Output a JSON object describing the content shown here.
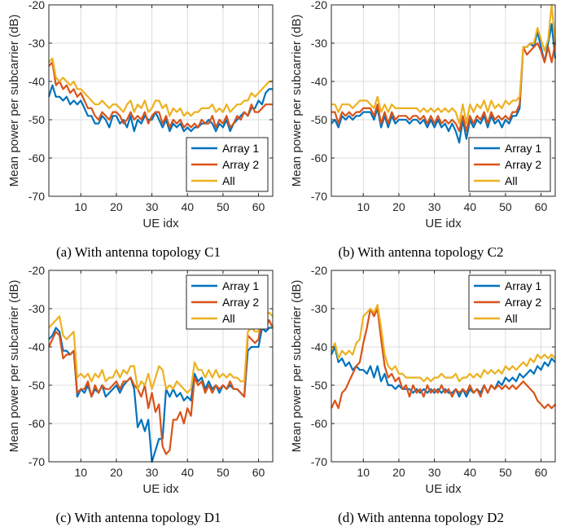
{
  "chart_data": [
    {
      "type": "line",
      "caption": "(a) With antenna topology C1",
      "xlabel": "UE idx",
      "ylabel": "Mean power per subcarrier (dB)",
      "xlim": [
        1,
        64
      ],
      "ylim": [
        -70,
        -20
      ],
      "xticks": [
        10,
        20,
        30,
        40,
        50,
        60
      ],
      "yticks": [
        -70,
        -60,
        -50,
        -40,
        -30,
        -20
      ],
      "legend_position": "bottom-right",
      "x": [
        1,
        2,
        3,
        4,
        5,
        6,
        7,
        8,
        9,
        10,
        11,
        12,
        13,
        14,
        15,
        16,
        17,
        18,
        19,
        20,
        21,
        22,
        23,
        24,
        25,
        26,
        27,
        28,
        29,
        30,
        31,
        32,
        33,
        34,
        35,
        36,
        37,
        38,
        39,
        40,
        41,
        42,
        43,
        44,
        45,
        46,
        47,
        48,
        49,
        50,
        51,
        52,
        53,
        54,
        55,
        56,
        57,
        58,
        59,
        60,
        61,
        62,
        63,
        64
      ],
      "series": [
        {
          "name": "Array 1",
          "color": "#0072BD",
          "values": [
            -44,
            -41,
            -44,
            -44,
            -45,
            -44,
            -46,
            -45,
            -46,
            -45,
            -47,
            -49,
            -49,
            -51,
            -51,
            -49,
            -50,
            -52,
            -49,
            -49,
            -51,
            -50,
            -52,
            -49,
            -53,
            -50,
            -51,
            -49,
            -50,
            -50,
            -48,
            -50,
            -52,
            -50,
            -53,
            -51,
            -52,
            -51,
            -53,
            -52,
            -53,
            -52,
            -52,
            -51,
            -51,
            -50,
            -51,
            -53,
            -51,
            -52,
            -50,
            -53,
            -51,
            -50,
            -49,
            -48,
            -49,
            -47,
            -47,
            -45,
            -46,
            -43,
            -42,
            -42
          ]
        },
        {
          "name": "Array 2",
          "color": "#D95319",
          "values": [
            -36,
            -35,
            -41,
            -40,
            -42,
            -41,
            -43,
            -42,
            -44,
            -43,
            -45,
            -47,
            -47,
            -49,
            -50,
            -48,
            -49,
            -50,
            -48,
            -48,
            -49,
            -51,
            -50,
            -48,
            -50,
            -49,
            -50,
            -48,
            -51,
            -49,
            -48,
            -48,
            -51,
            -49,
            -52,
            -50,
            -51,
            -50,
            -52,
            -51,
            -52,
            -51,
            -52,
            -50,
            -51,
            -51,
            -49,
            -52,
            -50,
            -51,
            -49,
            -52,
            -51,
            -49,
            -50,
            -48,
            -49,
            -46,
            -48,
            -48,
            -47,
            -46,
            -46,
            -46
          ]
        },
        {
          "name": "All",
          "color": "#EDB120",
          "values": [
            -35,
            -34,
            -39,
            -40,
            -39,
            -40,
            -41,
            -40,
            -42,
            -42,
            -43,
            -44,
            -45,
            -46,
            -46,
            -45,
            -46,
            -47,
            -46,
            -46,
            -47,
            -48,
            -46,
            -45,
            -48,
            -46,
            -47,
            -45,
            -48,
            -47,
            -45,
            -45,
            -47,
            -46,
            -49,
            -47,
            -48,
            -47,
            -49,
            -48,
            -49,
            -48,
            -48,
            -47,
            -47,
            -47,
            -46,
            -48,
            -47,
            -48,
            -46,
            -48,
            -47,
            -46,
            -46,
            -45,
            -45,
            -43,
            -44,
            -43,
            -42,
            -41,
            -40,
            -40
          ]
        }
      ]
    },
    {
      "type": "line",
      "caption": "(b) With antenna topology C2",
      "xlabel": "UE idx",
      "ylabel": "Mean power per subcarrier (dB)",
      "xlim": [
        1,
        64
      ],
      "ylim": [
        -70,
        -20
      ],
      "xticks": [
        10,
        20,
        30,
        40,
        50,
        60
      ],
      "yticks": [
        -70,
        -60,
        -50,
        -40,
        -30,
        -20
      ],
      "legend_position": "bottom-right",
      "x": [
        1,
        2,
        3,
        4,
        5,
        6,
        7,
        8,
        9,
        10,
        11,
        12,
        13,
        14,
        15,
        16,
        17,
        18,
        19,
        20,
        21,
        22,
        23,
        24,
        25,
        26,
        27,
        28,
        29,
        30,
        31,
        32,
        33,
        34,
        35,
        36,
        37,
        38,
        39,
        40,
        41,
        42,
        43,
        44,
        45,
        46,
        47,
        48,
        49,
        50,
        51,
        52,
        53,
        54,
        55,
        56,
        57,
        58,
        59,
        60,
        61,
        62,
        63,
        64
      ],
      "series": [
        {
          "name": "Array 1",
          "color": "#0072BD",
          "values": [
            -51,
            -50,
            -52,
            -49,
            -50,
            -49,
            -50,
            -49,
            -49,
            -48,
            -48,
            -48,
            -50,
            -47,
            -52,
            -49,
            -52,
            -49,
            -51,
            -50,
            -50,
            -50,
            -51,
            -50,
            -50,
            -51,
            -50,
            -52,
            -50,
            -52,
            -50,
            -52,
            -51,
            -53,
            -51,
            -53,
            -56,
            -50,
            -55,
            -50,
            -52,
            -50,
            -51,
            -49,
            -52,
            -49,
            -51,
            -50,
            -52,
            -50,
            -51,
            -49,
            -49,
            -47,
            -31,
            -31,
            -30,
            -31,
            -27,
            -31,
            -35,
            -30,
            -25,
            -34
          ]
        },
        {
          "name": "Array 2",
          "color": "#D95319",
          "values": [
            -48,
            -48,
            -51,
            -48,
            -49,
            -48,
            -49,
            -48,
            -48,
            -47,
            -47,
            -47,
            -49,
            -46,
            -51,
            -48,
            -51,
            -48,
            -50,
            -49,
            -49,
            -49,
            -50,
            -49,
            -49,
            -50,
            -49,
            -51,
            -49,
            -51,
            -49,
            -51,
            -50,
            -51,
            -50,
            -51,
            -53,
            -49,
            -53,
            -49,
            -51,
            -49,
            -50,
            -48,
            -51,
            -48,
            -50,
            -49,
            -50,
            -49,
            -50,
            -48,
            -48,
            -46,
            -31,
            -33,
            -32,
            -31,
            -30,
            -32,
            -35,
            -31,
            -35,
            -30
          ]
        },
        {
          "name": "All",
          "color": "#EDB120",
          "values": [
            -46,
            -46,
            -48,
            -46,
            -46,
            -46,
            -47,
            -46,
            -45,
            -45,
            -45,
            -46,
            -47,
            -44,
            -48,
            -46,
            -48,
            -46,
            -47,
            -47,
            -47,
            -47,
            -47,
            -47,
            -47,
            -48,
            -47,
            -48,
            -47,
            -48,
            -47,
            -48,
            -47,
            -48,
            -47,
            -48,
            -51,
            -46,
            -51,
            -46,
            -48,
            -46,
            -47,
            -45,
            -48,
            -45,
            -47,
            -46,
            -47,
            -45,
            -46,
            -45,
            -45,
            -44,
            -31,
            -31,
            -30,
            -30,
            -26,
            -29,
            -32,
            -29,
            -19,
            -30
          ]
        }
      ]
    },
    {
      "type": "line",
      "caption": "(c) With antenna topology D1",
      "xlabel": "UE idx",
      "ylabel": "Mean power per subcarrier (dB)",
      "xlim": [
        1,
        64
      ],
      "ylim": [
        -70,
        -20
      ],
      "xticks": [
        10,
        20,
        30,
        40,
        50,
        60
      ],
      "yticks": [
        -70,
        -60,
        -50,
        -40,
        -30,
        -20
      ],
      "legend_position": "top-right",
      "x": [
        1,
        2,
        3,
        4,
        5,
        6,
        7,
        8,
        9,
        10,
        11,
        12,
        13,
        14,
        15,
        16,
        17,
        18,
        19,
        20,
        21,
        22,
        23,
        24,
        25,
        26,
        27,
        28,
        29,
        30,
        31,
        32,
        33,
        34,
        35,
        36,
        37,
        38,
        39,
        40,
        41,
        42,
        43,
        44,
        45,
        46,
        47,
        48,
        49,
        50,
        51,
        52,
        53,
        54,
        55,
        56,
        57,
        58,
        59,
        60,
        61,
        62,
        63,
        64
      ],
      "series": [
        {
          "name": "Array 1",
          "color": "#0072BD",
          "values": [
            -38,
            -37,
            -35,
            -36,
            -41,
            -41,
            -42,
            -41,
            -53,
            -51,
            -52,
            -50,
            -53,
            -51,
            -52,
            -50,
            -53,
            -52,
            -51,
            -50,
            -52,
            -50,
            -49,
            -48,
            -51,
            -61,
            -59,
            -62,
            -59,
            -70,
            -67,
            -64,
            -64,
            -51,
            -53,
            -51,
            -53,
            -52,
            -54,
            -53,
            -54,
            -47,
            -49,
            -48,
            -51,
            -49,
            -51,
            -50,
            -52,
            -50,
            -51,
            -50,
            -51,
            -51,
            -52,
            -53,
            -41,
            -40,
            -40,
            -40,
            -35,
            -36,
            -35,
            -35
          ]
        },
        {
          "name": "Array 2",
          "color": "#D95319",
          "values": [
            -40,
            -38,
            -36,
            -37,
            -43,
            -42,
            -42,
            -41,
            -52,
            -51,
            -51,
            -49,
            -53,
            -50,
            -52,
            -50,
            -51,
            -51,
            -50,
            -49,
            -51,
            -49,
            -49,
            -48,
            -50,
            -51,
            -53,
            -50,
            -56,
            -52,
            -57,
            -55,
            -66,
            -68,
            -67,
            -59,
            -59,
            -57,
            -60,
            -56,
            -58,
            -48,
            -50,
            -49,
            -52,
            -50,
            -52,
            -50,
            -51,
            -50,
            -51,
            -49,
            -51,
            -51,
            -52,
            -53,
            -37,
            -38,
            -39,
            -38,
            -33,
            -35,
            -33,
            -35
          ]
        },
        {
          "name": "All",
          "color": "#EDB120",
          "values": [
            -35,
            -34,
            -33,
            -32,
            -37,
            -38,
            -37,
            -36,
            -48,
            -47,
            -48,
            -47,
            -49,
            -47,
            -48,
            -46,
            -49,
            -48,
            -48,
            -46,
            -48,
            -46,
            -47,
            -45,
            -45,
            -51,
            -49,
            -50,
            -47,
            -51,
            -48,
            -45,
            -46,
            -51,
            -50,
            -51,
            -49,
            -50,
            -51,
            -52,
            -51,
            -44,
            -46,
            -46,
            -48,
            -46,
            -48,
            -46,
            -48,
            -47,
            -48,
            -47,
            -48,
            -48,
            -49,
            -49,
            -36,
            -35,
            -36,
            -36,
            -31,
            -32,
            -31,
            -32
          ]
        }
      ]
    },
    {
      "type": "line",
      "caption": "(d) With antenna topology D2",
      "xlabel": "UE idx",
      "ylabel": "Mean power per subcarrier (dB)",
      "xlim": [
        1,
        64
      ],
      "ylim": [
        -70,
        -20
      ],
      "xticks": [
        10,
        20,
        30,
        40,
        50,
        60
      ],
      "yticks": [
        -70,
        -60,
        -50,
        -40,
        -30,
        -20
      ],
      "legend_position": "top-right",
      "x": [
        1,
        2,
        3,
        4,
        5,
        6,
        7,
        8,
        9,
        10,
        11,
        12,
        13,
        14,
        15,
        16,
        17,
        18,
        19,
        20,
        21,
        22,
        23,
        24,
        25,
        26,
        27,
        28,
        29,
        30,
        31,
        32,
        33,
        34,
        35,
        36,
        37,
        38,
        39,
        40,
        41,
        42,
        43,
        44,
        45,
        46,
        47,
        48,
        49,
        50,
        51,
        52,
        53,
        54,
        55,
        56,
        57,
        58,
        59,
        60,
        61,
        62,
        63,
        64
      ],
      "series": [
        {
          "name": "Array 1",
          "color": "#0072BD",
          "values": [
            -42,
            -40,
            -44,
            -43,
            -45,
            -44,
            -46,
            -45,
            -46,
            -46,
            -47,
            -45,
            -48,
            -45,
            -49,
            -47,
            -50,
            -50,
            -51,
            -50,
            -51,
            -51,
            -51,
            -52,
            -51,
            -52,
            -51,
            -52,
            -51,
            -52,
            -51,
            -52,
            -51,
            -52,
            -52,
            -51,
            -53,
            -51,
            -53,
            -51,
            -52,
            -51,
            -52,
            -50,
            -52,
            -50,
            -51,
            -49,
            -50,
            -48,
            -49,
            -48,
            -49,
            -47,
            -48,
            -47,
            -46,
            -47,
            -45,
            -46,
            -44,
            -45,
            -43,
            -44
          ]
        },
        {
          "name": "Array 2",
          "color": "#D95319",
          "values": [
            -56,
            -54,
            -56,
            -52,
            -51,
            -49,
            -47,
            -45,
            -44,
            -39,
            -35,
            -30,
            -32,
            -30,
            -38,
            -45,
            -48,
            -47,
            -49,
            -48,
            -51,
            -50,
            -53,
            -50,
            -52,
            -51,
            -53,
            -50,
            -52,
            -51,
            -52,
            -50,
            -52,
            -51,
            -53,
            -51,
            -52,
            -51,
            -52,
            -50,
            -52,
            -51,
            -53,
            -50,
            -52,
            -50,
            -51,
            -50,
            -51,
            -50,
            -51,
            -50,
            -51,
            -50,
            -49,
            -50,
            -51,
            -52,
            -54,
            -55,
            -56,
            -55,
            -56,
            -55
          ]
        },
        {
          "name": "All",
          "color": "#EDB120",
          "values": [
            -41,
            -39,
            -43,
            -41,
            -42,
            -41,
            -42,
            -39,
            -38,
            -32,
            -31,
            -30,
            -31,
            -29,
            -35,
            -42,
            -45,
            -46,
            -45,
            -47,
            -47,
            -48,
            -48,
            -48,
            -48,
            -48,
            -49,
            -48,
            -49,
            -48,
            -48,
            -47,
            -48,
            -48,
            -48,
            -47,
            -49,
            -48,
            -48,
            -47,
            -48,
            -47,
            -48,
            -46,
            -47,
            -46,
            -47,
            -46,
            -47,
            -45,
            -46,
            -45,
            -46,
            -45,
            -44,
            -45,
            -43,
            -44,
            -42,
            -43,
            -42,
            -43,
            -42,
            -43
          ]
        }
      ]
    }
  ]
}
